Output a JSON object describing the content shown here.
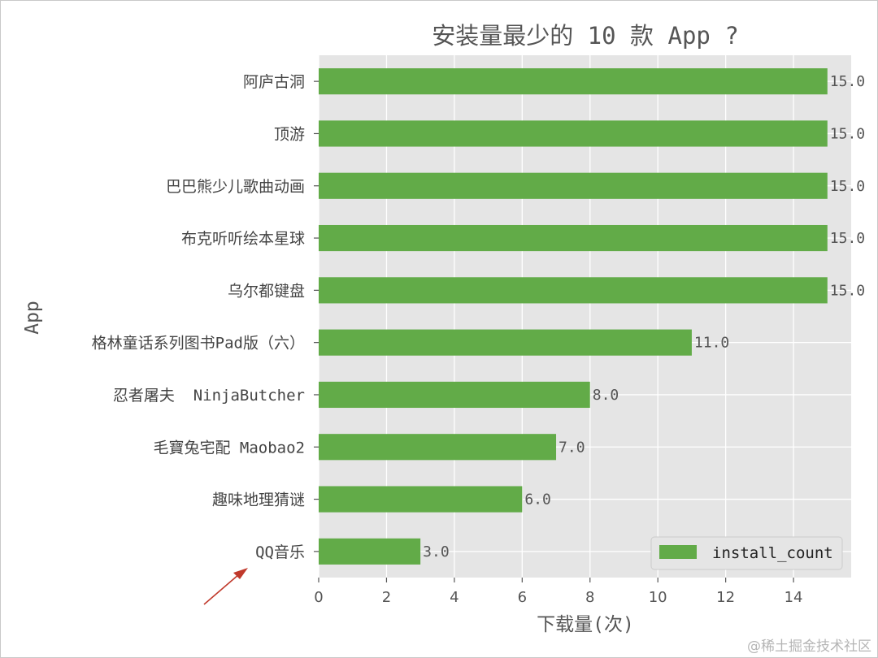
{
  "chart_data": {
    "type": "bar",
    "orientation": "horizontal",
    "title": "安装量最少的 10 款 App ?",
    "xlabel": "下载量(次)",
    "ylabel": "App",
    "categories": [
      "阿庐古洞",
      "顶游",
      "巴巴熊少儿歌曲动画",
      "布克听听绘本星球",
      "乌尔都键盘",
      "格林童话系列图书Pad版（六）",
      "忍者屠夫  NinjaButcher",
      "毛寶兔宅配 Maobao2",
      "趣味地理猜谜",
      "QQ音乐"
    ],
    "series": [
      {
        "name": "install_count",
        "values": [
          15,
          15,
          15,
          15,
          15,
          11,
          8,
          7,
          6,
          3
        ],
        "labels": [
          "15.0",
          "15.0",
          "15.0",
          "15.0",
          "15.0",
          "11.0",
          "8.0",
          "7.0",
          "6.0",
          "3.0"
        ]
      }
    ],
    "xticks": [
      "0",
      "2",
      "4",
      "6",
      "8",
      "10",
      "12",
      "14"
    ],
    "xlim": [
      0,
      15.7
    ],
    "grid": true,
    "legend": "bottom-right",
    "colors": {
      "bar": "#62ab48",
      "axes_bg": "#e5e5e5",
      "grid": "#ffffff",
      "annotation_arrow": "#c0392b"
    },
    "annotation": "arrow pointing to QQ音乐"
  },
  "watermark": "@稀土掘金技术社区"
}
